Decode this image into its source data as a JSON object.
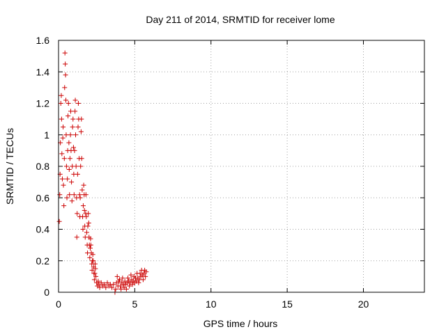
{
  "chart_data": {
    "type": "scatter",
    "title": "Day 211 of 2014, SRMTID for receiver lome",
    "xlabel": "GPS time / hours",
    "ylabel": "SRMTID / TECUs",
    "xlim": [
      0,
      24
    ],
    "ylim": [
      0,
      1.6
    ],
    "xticks": [
      "0",
      "5",
      "10",
      "15",
      "20"
    ],
    "xtick_values": [
      0,
      5,
      10,
      15,
      20
    ],
    "yticks": [
      "0",
      "0.2",
      "0.4",
      "0.6",
      "0.8",
      "1",
      "1.2",
      "1.4",
      "1.6"
    ],
    "ytick_values": [
      0,
      0.2,
      0.4,
      0.6,
      0.8,
      1.0,
      1.2,
      1.4,
      1.6
    ],
    "grid": true,
    "marker": "+",
    "marker_color": "#cc0000",
    "series": [
      {
        "name": "lome",
        "points": [
          [
            0.05,
            0.45
          ],
          [
            0.08,
            0.62
          ],
          [
            0.1,
            0.75
          ],
          [
            0.12,
            0.95
          ],
          [
            0.15,
            1.2
          ],
          [
            0.18,
            1.25
          ],
          [
            0.2,
            1.1
          ],
          [
            0.22,
            0.88
          ],
          [
            0.25,
            0.72
          ],
          [
            0.28,
            0.98
          ],
          [
            0.3,
            1.05
          ],
          [
            0.32,
            0.68
          ],
          [
            0.35,
            0.55
          ],
          [
            0.38,
            0.85
          ],
          [
            0.4,
            1.3
          ],
          [
            0.42,
            1.52
          ],
          [
            0.44,
            1.45
          ],
          [
            0.46,
            1.38
          ],
          [
            0.48,
            1.22
          ],
          [
            0.5,
            1.0
          ],
          [
            0.52,
            0.8
          ],
          [
            0.55,
            0.6
          ],
          [
            0.58,
            0.72
          ],
          [
            0.6,
            0.9
          ],
          [
            0.62,
            1.12
          ],
          [
            0.65,
            1.2
          ],
          [
            0.68,
            0.95
          ],
          [
            0.7,
            0.78
          ],
          [
            0.72,
            0.62
          ],
          [
            0.75,
            0.85
          ],
          [
            0.78,
            1.0
          ],
          [
            0.8,
            1.15
          ],
          [
            0.82,
            0.9
          ],
          [
            0.85,
            0.7
          ],
          [
            0.88,
            0.58
          ],
          [
            0.9,
            0.8
          ],
          [
            0.92,
            1.05
          ],
          [
            0.95,
            1.1
          ],
          [
            0.98,
            0.92
          ],
          [
            1.0,
            0.75
          ],
          [
            1.02,
            0.62
          ],
          [
            1.05,
            0.9
          ],
          [
            1.08,
            1.15
          ],
          [
            1.1,
            1.22
          ],
          [
            1.12,
            1.0
          ],
          [
            1.15,
            0.8
          ],
          [
            1.18,
            0.6
          ],
          [
            1.2,
            0.35
          ],
          [
            1.22,
            0.5
          ],
          [
            1.25,
            0.75
          ],
          [
            1.28,
            1.05
          ],
          [
            1.3,
            1.2
          ],
          [
            1.32,
            1.1
          ],
          [
            1.35,
            0.85
          ],
          [
            1.38,
            0.62
          ],
          [
            1.4,
            0.48
          ],
          [
            1.42,
            0.6
          ],
          [
            1.45,
            0.8
          ],
          [
            1.48,
            1.02
          ],
          [
            1.5,
            1.1
          ],
          [
            1.52,
            0.85
          ],
          [
            1.55,
            0.65
          ],
          [
            1.58,
            0.48
          ],
          [
            1.6,
            0.4
          ],
          [
            1.62,
            0.55
          ],
          [
            1.65,
            0.68
          ],
          [
            1.68,
            0.62
          ],
          [
            1.7,
            0.52
          ],
          [
            1.72,
            0.42
          ],
          [
            1.75,
            0.35
          ],
          [
            1.78,
            0.5
          ],
          [
            1.8,
            0.62
          ],
          [
            1.82,
            0.48
          ],
          [
            1.85,
            0.38
          ],
          [
            1.88,
            0.3
          ],
          [
            1.9,
            0.25
          ],
          [
            1.92,
            0.42
          ],
          [
            1.95,
            0.5
          ],
          [
            1.98,
            0.44
          ],
          [
            2.0,
            0.35
          ],
          [
            2.02,
            0.3
          ],
          [
            2.05,
            0.22
          ],
          [
            2.08,
            0.28
          ],
          [
            2.1,
            0.34
          ],
          [
            2.12,
            0.3
          ],
          [
            2.15,
            0.25
          ],
          [
            2.18,
            0.18
          ],
          [
            2.2,
            0.14
          ],
          [
            2.22,
            0.2
          ],
          [
            2.25,
            0.24
          ],
          [
            2.28,
            0.2
          ],
          [
            2.3,
            0.16
          ],
          [
            2.32,
            0.12
          ],
          [
            2.35,
            0.08
          ],
          [
            2.38,
            0.12
          ],
          [
            2.4,
            0.18
          ],
          [
            2.42,
            0.15
          ],
          [
            2.45,
            0.1
          ],
          [
            2.5,
            0.06
          ],
          [
            2.55,
            0.04
          ],
          [
            2.6,
            0.07
          ],
          [
            2.65,
            0.05
          ],
          [
            2.7,
            0.03
          ],
          [
            2.8,
            0.06
          ],
          [
            2.9,
            0.04
          ],
          [
            3.0,
            0.05
          ],
          [
            3.1,
            0.03
          ],
          [
            3.2,
            0.06
          ],
          [
            3.3,
            0.04
          ],
          [
            3.4,
            0.05
          ],
          [
            3.5,
            0.03
          ],
          [
            3.6,
            0.05
          ],
          [
            3.7,
            0.0
          ],
          [
            3.75,
            0.02
          ],
          [
            3.8,
            0.06
          ],
          [
            3.85,
            0.1
          ],
          [
            3.9,
            0.04
          ],
          [
            3.95,
            0.07
          ],
          [
            4.0,
            0.08
          ],
          [
            4.05,
            0.04
          ],
          [
            4.1,
            0.02
          ],
          [
            4.15,
            0.06
          ],
          [
            4.2,
            0.09
          ],
          [
            4.25,
            0.05
          ],
          [
            4.3,
            0.03
          ],
          [
            4.35,
            0.07
          ],
          [
            4.4,
            0.05
          ],
          [
            4.45,
            0.02
          ],
          [
            4.5,
            0.06
          ],
          [
            4.55,
            0.09
          ],
          [
            4.6,
            0.07
          ],
          [
            4.65,
            0.04
          ],
          [
            4.7,
            0.06
          ],
          [
            4.75,
            0.11
          ],
          [
            4.8,
            0.08
          ],
          [
            4.85,
            0.05
          ],
          [
            4.9,
            0.07
          ],
          [
            4.95,
            0.1
          ],
          [
            5.0,
            0.06
          ],
          [
            5.05,
            0.09
          ],
          [
            5.1,
            0.07
          ],
          [
            5.15,
            0.12
          ],
          [
            5.2,
            0.09
          ],
          [
            5.25,
            0.06
          ],
          [
            5.3,
            0.08
          ],
          [
            5.35,
            0.12
          ],
          [
            5.4,
            0.1
          ],
          [
            5.45,
            0.14
          ],
          [
            5.5,
            0.11
          ],
          [
            5.55,
            0.08
          ],
          [
            5.6,
            0.12
          ],
          [
            5.65,
            0.14
          ],
          [
            5.7,
            0.1
          ],
          [
            5.75,
            0.13
          ]
        ]
      }
    ]
  }
}
